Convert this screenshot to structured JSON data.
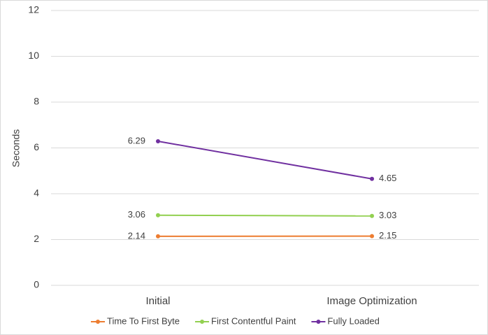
{
  "chart_data": {
    "type": "line",
    "y_label": "Seconds",
    "categories": [
      "Initial",
      "Image Optimization"
    ],
    "series": [
      {
        "name": "Time To First Byte",
        "color": "#ed7d31",
        "values": [
          2.14,
          2.15
        ]
      },
      {
        "name": "First Contentful Paint",
        "color": "#92d050",
        "values": [
          3.06,
          3.03
        ]
      },
      {
        "name": "Fully Loaded",
        "color": "#7030a0",
        "values": [
          6.29,
          4.65
        ]
      }
    ],
    "ylim": [
      0,
      12
    ],
    "yticks": [
      0,
      2,
      4,
      6,
      8,
      10,
      12
    ],
    "grid": true,
    "legend": "bottom"
  }
}
